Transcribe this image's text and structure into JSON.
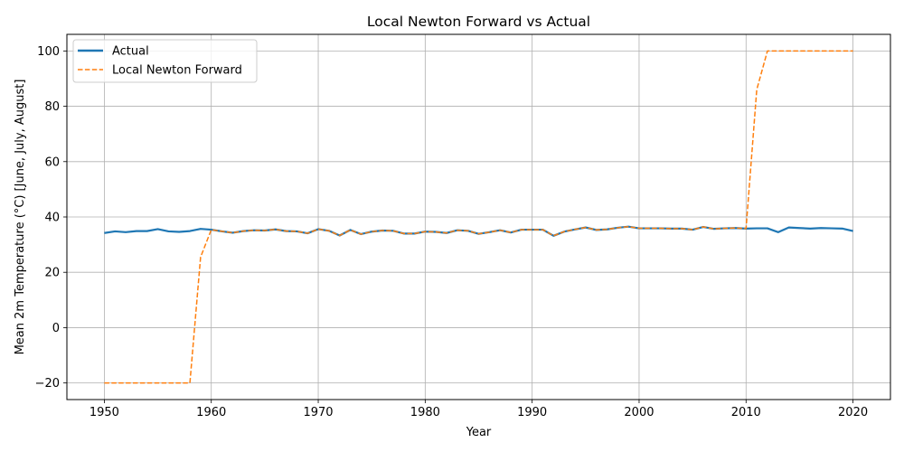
{
  "chart_data": {
    "type": "line",
    "title": "Local Newton Forward vs Actual",
    "xlabel": "Year",
    "ylabel": "Mean 2m Temperature (°C) [June, July, August]",
    "xlim": [
      1946.5,
      2023.5
    ],
    "ylim": [
      -26,
      106
    ],
    "xticks": [
      1950,
      1960,
      1970,
      1980,
      1990,
      2000,
      2010,
      2020
    ],
    "yticks": [
      -20,
      0,
      20,
      40,
      60,
      80,
      100
    ],
    "grid": true,
    "legend_position": "top-left",
    "x": [
      1950,
      1951,
      1952,
      1953,
      1954,
      1955,
      1956,
      1957,
      1958,
      1959,
      1960,
      1961,
      1962,
      1963,
      1964,
      1965,
      1966,
      1967,
      1968,
      1969,
      1970,
      1971,
      1972,
      1973,
      1974,
      1975,
      1976,
      1977,
      1978,
      1979,
      1980,
      1981,
      1982,
      1983,
      1984,
      1985,
      1986,
      1987,
      1988,
      1989,
      1990,
      1991,
      1992,
      1993,
      1994,
      1995,
      1996,
      1997,
      1998,
      1999,
      2000,
      2001,
      2002,
      2003,
      2004,
      2005,
      2006,
      2007,
      2008,
      2009,
      2010,
      2011,
      2012,
      2013,
      2014,
      2015,
      2016,
      2017,
      2018,
      2019,
      2020
    ],
    "series": [
      {
        "name": "Actual",
        "color": "#1f77b4",
        "style": "solid",
        "values": [
          34.2,
          34.8,
          34.5,
          34.9,
          34.9,
          35.6,
          34.8,
          34.6,
          34.9,
          35.7,
          35.4,
          34.8,
          34.3,
          34.9,
          35.2,
          35.1,
          35.5,
          34.9,
          34.8,
          34.1,
          35.6,
          35.0,
          33.3,
          35.3,
          33.8,
          34.7,
          35.1,
          35.0,
          34.0,
          34.0,
          34.7,
          34.6,
          34.2,
          35.2,
          35.0,
          33.9,
          34.5,
          35.2,
          34.4,
          35.4,
          35.4,
          35.4,
          33.2,
          34.7,
          35.5,
          36.2,
          35.3,
          35.5,
          36.1,
          36.5,
          35.9,
          35.9,
          35.9,
          35.8,
          35.8,
          35.4,
          36.4,
          35.7,
          35.9,
          36.0,
          35.8,
          35.9,
          35.9,
          34.5,
          36.2,
          36.0,
          35.8,
          36.0,
          35.9,
          35.8,
          34.9
        ]
      },
      {
        "name": "Local Newton Forward",
        "color": "#ff7f0e",
        "style": "dashed",
        "values": [
          -20,
          -20,
          -20,
          -20,
          -20,
          -20,
          -20,
          -20,
          -20,
          25.5,
          35.4,
          34.8,
          34.3,
          34.9,
          35.2,
          35.1,
          35.5,
          34.9,
          34.8,
          34.1,
          35.6,
          35.0,
          33.3,
          35.3,
          33.8,
          34.7,
          35.1,
          35.0,
          34.0,
          34.0,
          34.7,
          34.6,
          34.2,
          35.2,
          35.0,
          33.9,
          34.5,
          35.2,
          34.4,
          35.4,
          35.4,
          35.4,
          33.2,
          34.7,
          35.5,
          36.2,
          35.3,
          35.5,
          36.1,
          36.5,
          35.9,
          35.9,
          35.9,
          35.8,
          35.8,
          35.4,
          36.4,
          35.7,
          35.9,
          36.0,
          35.8,
          86.0,
          100,
          100,
          100,
          100,
          100,
          100,
          100,
          100,
          100
        ]
      }
    ]
  }
}
